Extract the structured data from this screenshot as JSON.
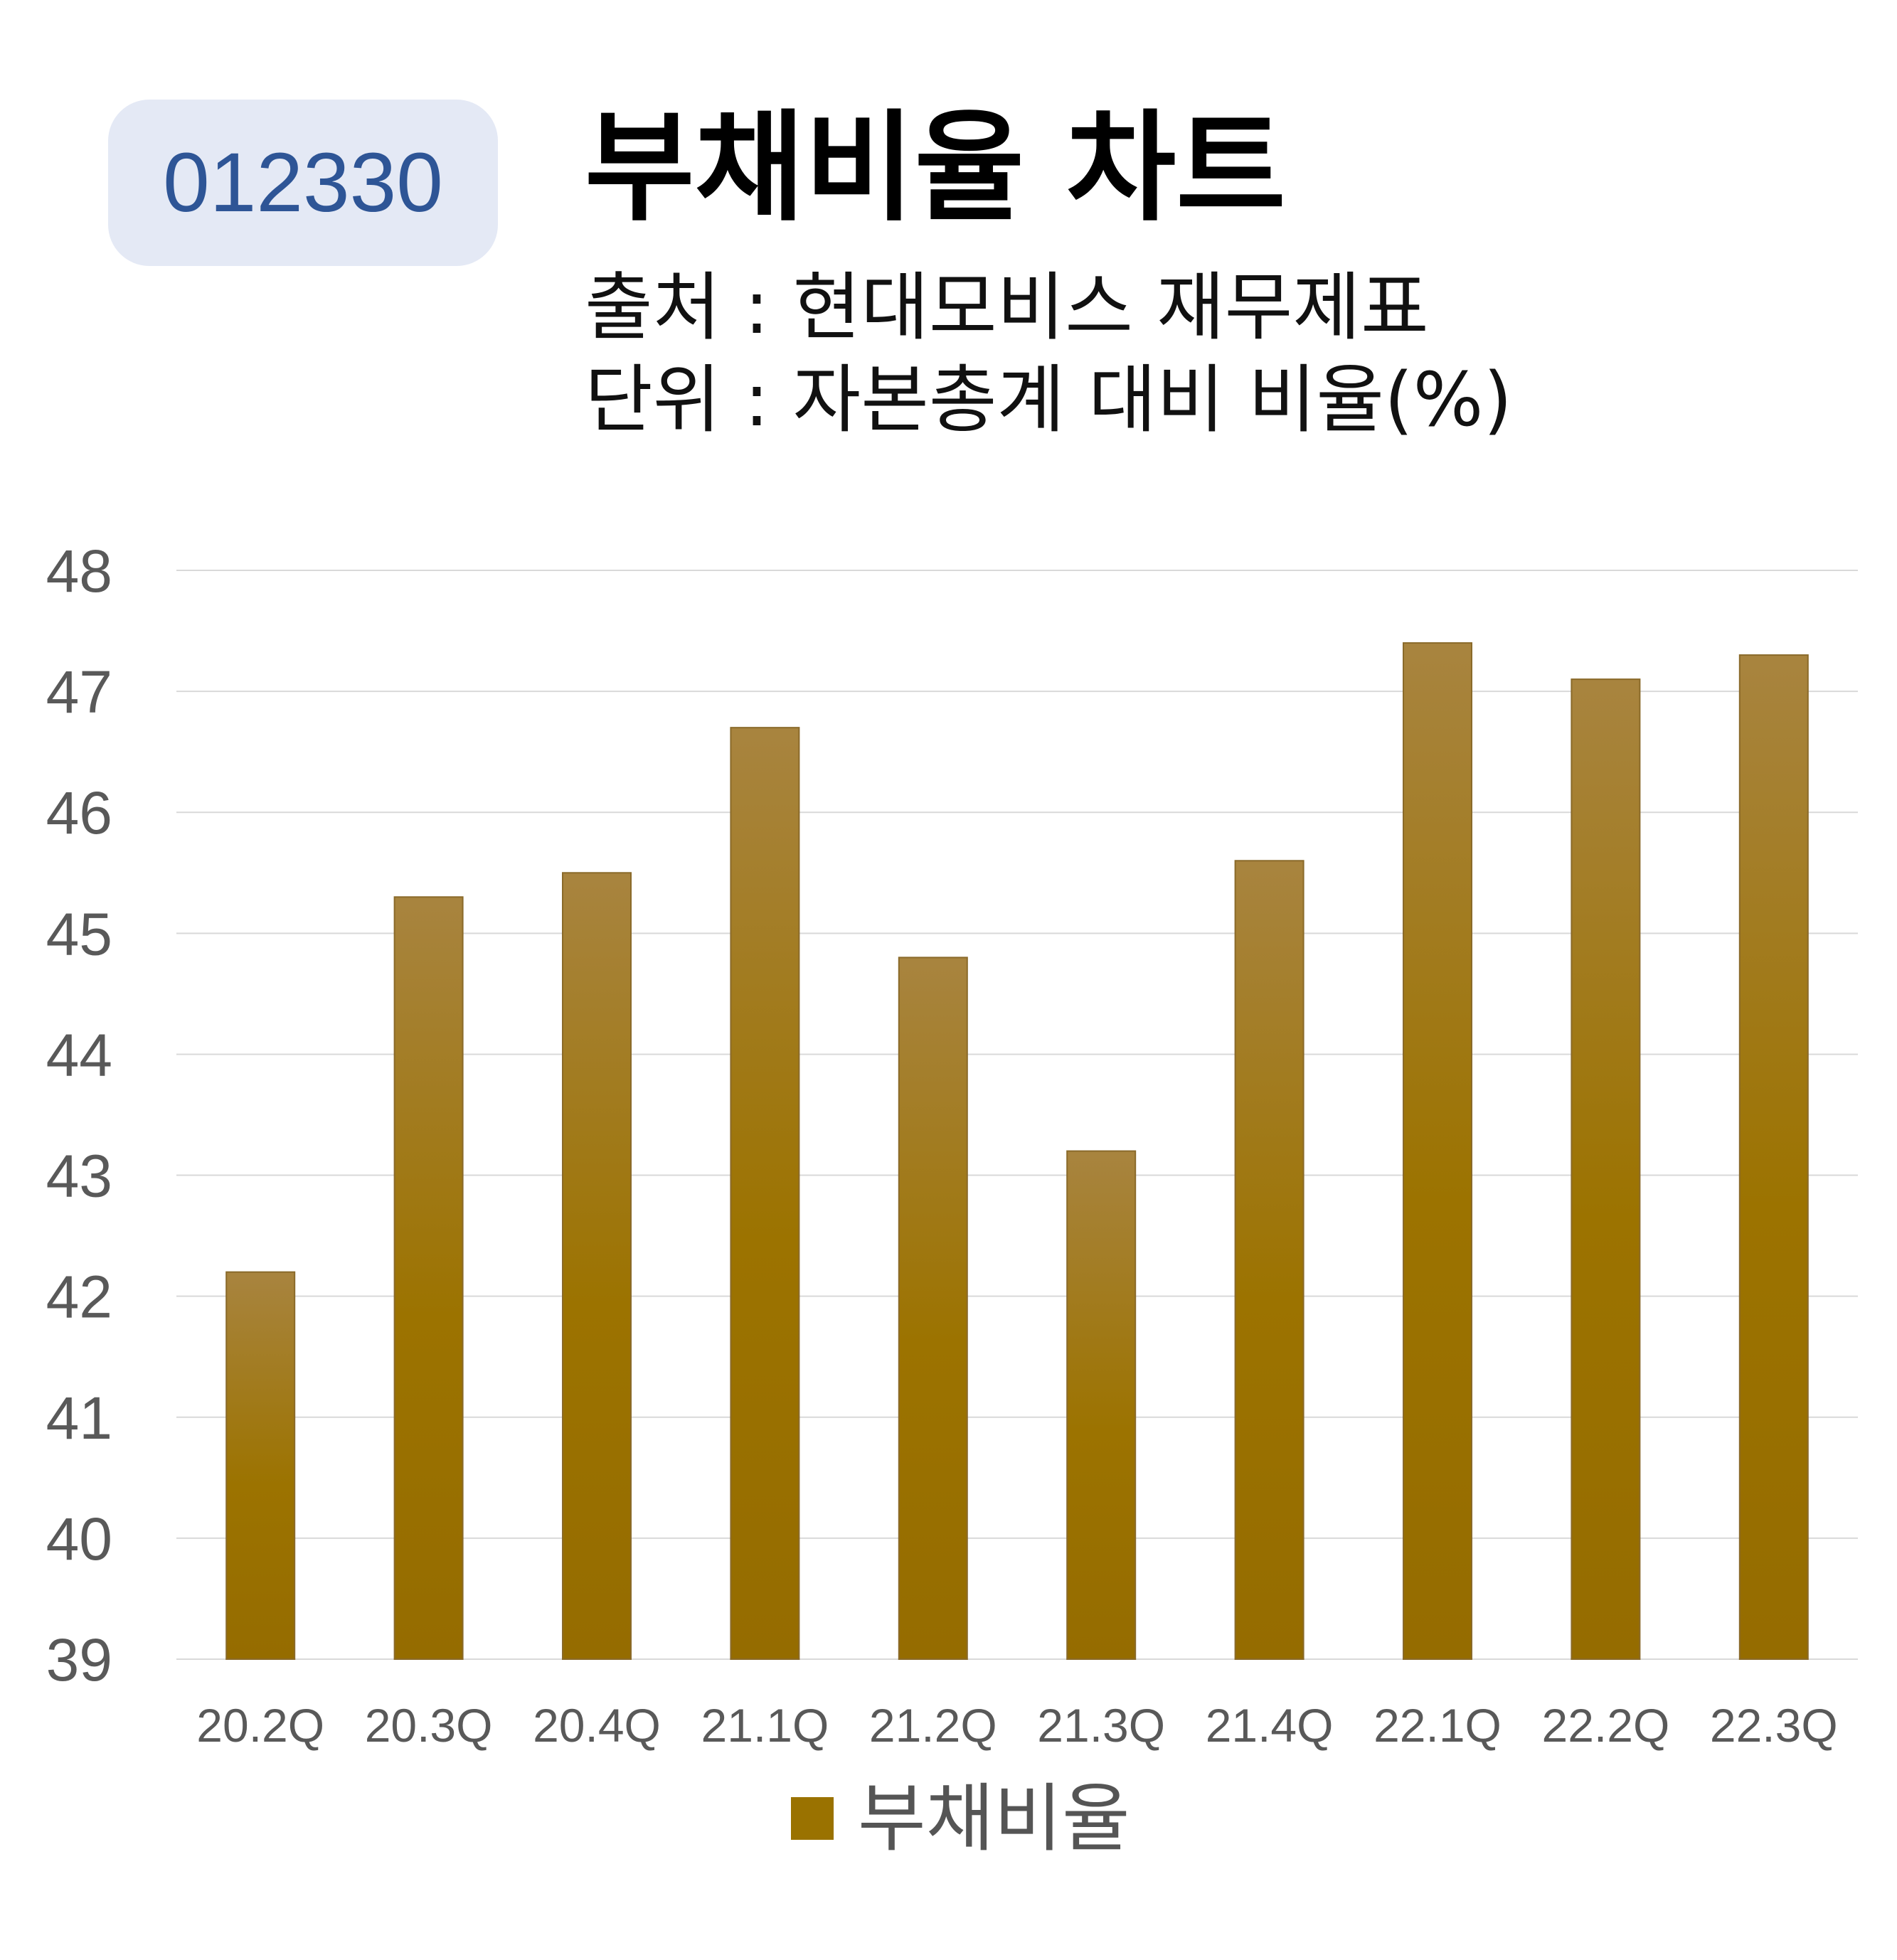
{
  "header": {
    "ticker": "012330",
    "title": "부채비율 차트",
    "source_line": "출처 : 현대모비스 재무제표",
    "unit_line": "단위 : 자본총계 대비 비율(%)"
  },
  "chart_data": {
    "type": "bar",
    "categories": [
      "20.2Q",
      "20.3Q",
      "20.4Q",
      "21.1Q",
      "21.2Q",
      "21.3Q",
      "21.4Q",
      "22.1Q",
      "22.2Q",
      "22.3Q"
    ],
    "series": [
      {
        "name": "부채비율",
        "values": [
          42.2,
          45.3,
          45.5,
          46.7,
          44.8,
          43.2,
          45.6,
          47.4,
          47.1,
          47.3
        ]
      }
    ],
    "ylim": [
      39,
      48
    ],
    "yticks": [
      39,
      40,
      41,
      42,
      43,
      44,
      45,
      46,
      47,
      48
    ],
    "grid": true,
    "legend_position": "bottom",
    "colors": {
      "bar_top": "#a8843f",
      "bar_bottom": "#956c00",
      "grid": "#d9d9d9",
      "tick_text": "#595959"
    }
  }
}
